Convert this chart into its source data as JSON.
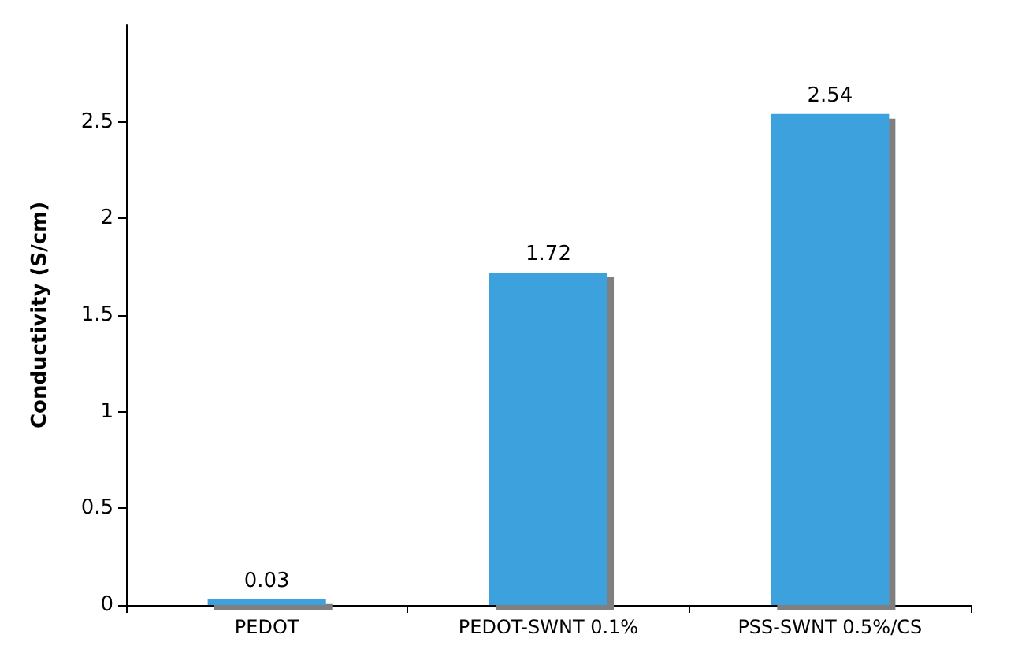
{
  "chart_data": {
    "type": "bar",
    "ylabel": "Conductivity (S/cm)",
    "categories": [
      "PEDOT",
      "PEDOT-SWNT 0.1%",
      "PSS-SWNT 0.5%/CS"
    ],
    "values": [
      0.03,
      1.72,
      2.54
    ],
    "color": "#3ea1dd",
    "ylim": [
      0,
      3
    ],
    "yticks": [
      0,
      0.5,
      1,
      1.5,
      2,
      2.5
    ],
    "grid": false,
    "data_labels": true
  }
}
